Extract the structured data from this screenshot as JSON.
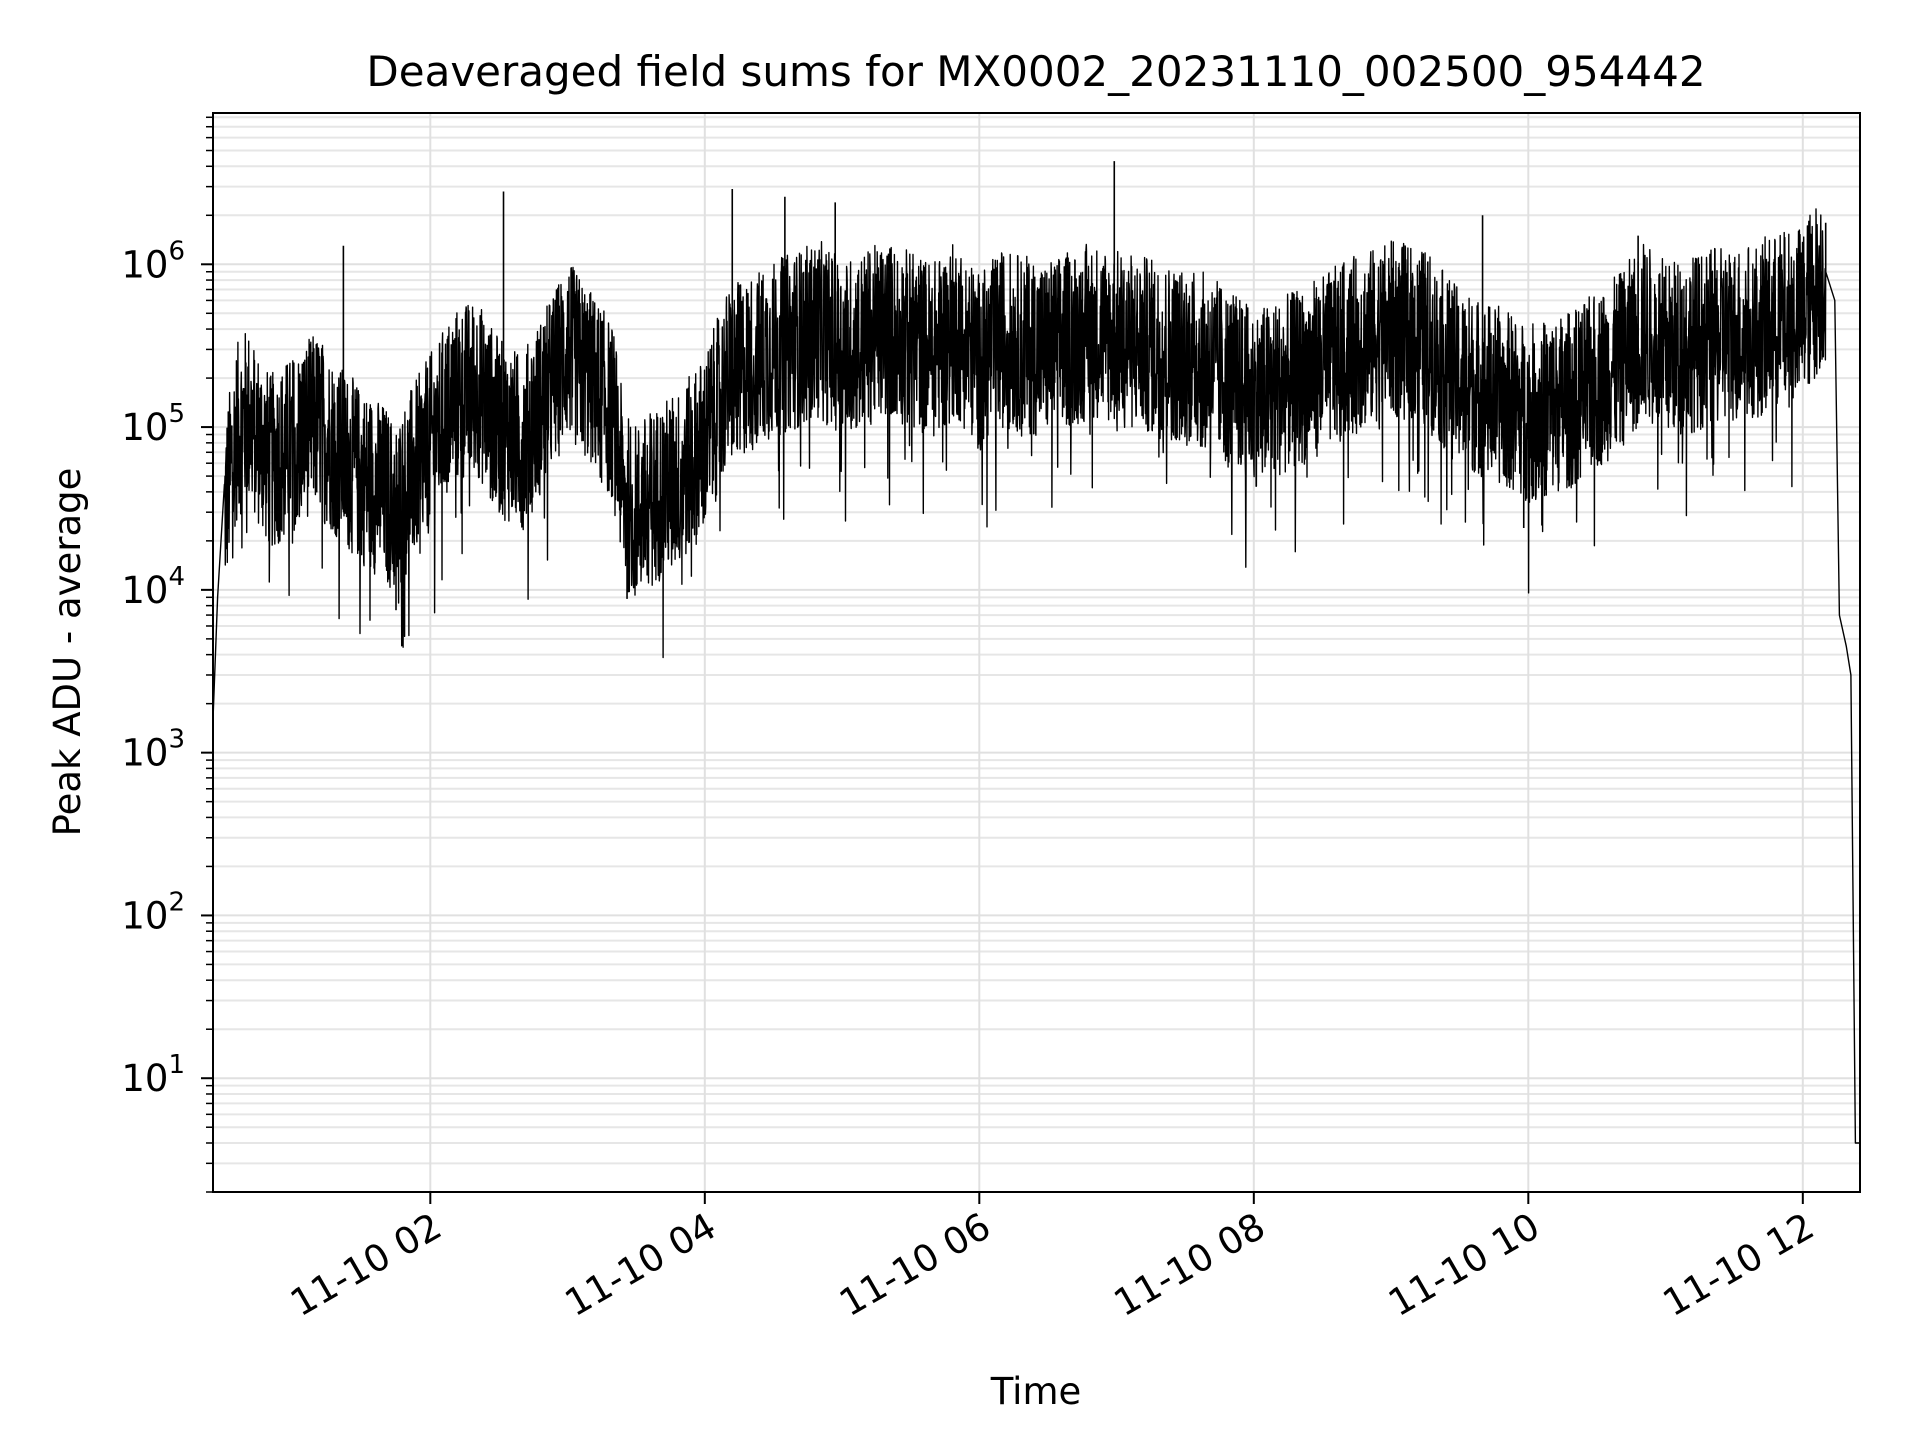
{
  "chart_data": {
    "type": "line",
    "title": "Deaveraged field sums for MX0002_20231110_002500_954442",
    "xlabel": "Time",
    "ylabel": "Peak ADU - average",
    "yscale": "log",
    "ylim": [
      2,
      8500000
    ],
    "xlim": [
      "2023-11-10 00:25",
      "2023-11-10 12:25"
    ],
    "grid": true,
    "line_color": "#000000",
    "x_ticks": [
      {
        "t": "2023-11-10 02:00",
        "label": "11-10 02"
      },
      {
        "t": "2023-11-10 04:00",
        "label": "11-10 04"
      },
      {
        "t": "2023-11-10 06:00",
        "label": "11-10 06"
      },
      {
        "t": "2023-11-10 08:00",
        "label": "11-10 08"
      },
      {
        "t": "2023-11-10 10:00",
        "label": "11-10 10"
      },
      {
        "t": "2023-11-10 12:00",
        "label": "11-10 12"
      }
    ],
    "y_ticks": [
      {
        "value": 10,
        "base": "10",
        "exp": "1"
      },
      {
        "value": 100,
        "base": "10",
        "exp": "2"
      },
      {
        "value": 1000,
        "base": "10",
        "exp": "3"
      },
      {
        "value": 10000,
        "base": "10",
        "exp": "4"
      },
      {
        "value": 100000,
        "base": "10",
        "exp": "5"
      },
      {
        "value": 1000000,
        "base": "10",
        "exp": "6"
      }
    ],
    "series": [
      {
        "points": [
          [
            "2023-11-10 00:25",
            1600
          ],
          [
            "2023-11-10 00:27",
            9000
          ],
          [
            "2023-11-10 00:30",
            30000
          ],
          [
            "2023-11-10 00:35",
            90000
          ],
          [
            "2023-11-10 00:40",
            120000
          ],
          [
            "2023-11-10 00:50",
            60000
          ],
          [
            "2023-11-10 01:00",
            80000
          ],
          [
            "2023-11-10 01:10",
            110000
          ],
          [
            "2023-11-10 01:20",
            70000
          ],
          [
            "2023-11-10 01:30",
            50000
          ],
          [
            "2023-11-10 01:40",
            40000
          ],
          [
            "2023-11-10 01:45",
            30000
          ],
          [
            "2023-11-10 01:50",
            45000
          ],
          [
            "2023-11-10 02:00",
            80000
          ],
          [
            "2023-11-10 02:10",
            150000
          ],
          [
            "2023-11-10 02:20",
            180000
          ],
          [
            "2023-11-10 02:30",
            100000
          ],
          [
            "2023-11-10 02:40",
            80000
          ],
          [
            "2023-11-10 02:50",
            150000
          ],
          [
            "2023-11-10 03:00",
            300000
          ],
          [
            "2023-11-10 03:10",
            200000
          ],
          [
            "2023-11-10 03:20",
            120000
          ],
          [
            "2023-11-10 03:25",
            35000
          ],
          [
            "2023-11-10 03:30",
            30000
          ],
          [
            "2023-11-10 03:40",
            40000
          ],
          [
            "2023-11-10 03:50",
            50000
          ],
          [
            "2023-11-10 04:00",
            80000
          ],
          [
            "2023-11-10 04:10",
            200000
          ],
          [
            "2023-11-10 04:30",
            300000
          ],
          [
            "2023-11-10 04:50",
            400000
          ],
          [
            "2023-11-10 05:00",
            300000
          ],
          [
            "2023-11-10 05:20",
            400000
          ],
          [
            "2023-11-10 05:40",
            300000
          ],
          [
            "2023-11-10 05:50",
            400000
          ],
          [
            "2023-11-10 06:00",
            250000
          ],
          [
            "2023-11-10 06:10",
            350000
          ],
          [
            "2023-11-10 06:30",
            300000
          ],
          [
            "2023-11-10 06:50",
            400000
          ],
          [
            "2023-11-10 07:00",
            350000
          ],
          [
            "2023-11-10 07:20",
            300000
          ],
          [
            "2023-11-10 07:40",
            250000
          ],
          [
            "2023-11-10 07:50",
            200000
          ],
          [
            "2023-11-10 08:00",
            150000
          ],
          [
            "2023-11-10 08:20",
            200000
          ],
          [
            "2023-11-10 08:40",
            300000
          ],
          [
            "2023-11-10 09:00",
            400000
          ],
          [
            "2023-11-10 09:15",
            350000
          ],
          [
            "2023-11-10 09:30",
            200000
          ],
          [
            "2023-11-10 09:50",
            150000
          ],
          [
            "2023-11-10 10:00",
            120000
          ],
          [
            "2023-11-10 10:20",
            150000
          ],
          [
            "2023-11-10 10:40",
            250000
          ],
          [
            "2023-11-10 10:50",
            400000
          ],
          [
            "2023-11-10 11:00",
            300000
          ],
          [
            "2023-11-10 11:20",
            350000
          ],
          [
            "2023-11-10 11:40",
            400000
          ],
          [
            "2023-11-10 12:00",
            500000
          ],
          [
            "2023-11-10 12:10",
            900000
          ],
          [
            "2023-11-10 12:14",
            600000
          ],
          [
            "2023-11-10 12:16",
            7000
          ],
          [
            "2023-11-10 12:19",
            4500
          ],
          [
            "2023-11-10 12:21",
            3000
          ],
          [
            "2023-11-10 12:23",
            4
          ],
          [
            "2023-11-10 12:25",
            4
          ]
        ]
      }
    ],
    "spikes": [
      [
        "2023-11-10 01:22",
        1300000
      ],
      [
        "2023-11-10 02:32",
        2800000
      ],
      [
        "2023-11-10 04:12",
        2900000
      ],
      [
        "2023-11-10 04:35",
        2600000
      ],
      [
        "2023-11-10 04:57",
        2400000
      ],
      [
        "2023-11-10 06:59",
        4300000
      ],
      [
        "2023-11-10 09:40",
        2000000
      ],
      [
        "2023-11-10 10:48",
        1500000
      ],
      [
        "2023-11-10 12:10",
        1800000
      ],
      [
        "2023-11-10 01:45",
        7500
      ],
      [
        "2023-11-10 03:26",
        8800
      ],
      [
        "2023-11-10 09:58",
        24000
      ]
    ]
  }
}
